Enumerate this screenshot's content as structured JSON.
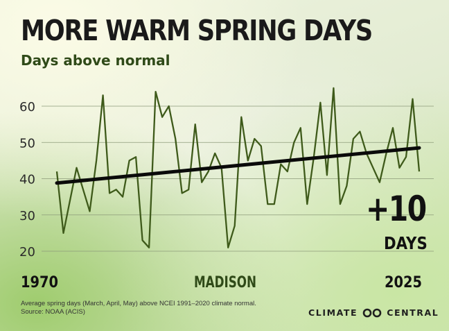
{
  "header": {
    "title": "MORE WARM SPRING DAYS",
    "subtitle": "Days above normal"
  },
  "chart_data": {
    "type": "line",
    "title": "MORE WARM SPRING DAYS",
    "subtitle": "Days above normal",
    "location": "MADISON",
    "x_start_label": "1970",
    "x_end_label": "2025",
    "x": [
      1970,
      1971,
      1972,
      1973,
      1974,
      1975,
      1976,
      1977,
      1978,
      1979,
      1980,
      1981,
      1982,
      1983,
      1984,
      1985,
      1986,
      1987,
      1988,
      1989,
      1990,
      1991,
      1992,
      1993,
      1994,
      1995,
      1996,
      1997,
      1998,
      1999,
      2000,
      2001,
      2002,
      2003,
      2004,
      2005,
      2006,
      2007,
      2008,
      2009,
      2010,
      2011,
      2012,
      2013,
      2014,
      2015,
      2016,
      2017,
      2018,
      2019,
      2020,
      2021,
      2022,
      2023,
      2024,
      2025
    ],
    "series": [
      {
        "values": [
          42,
          25,
          34,
          43,
          37,
          31,
          45,
          63,
          36,
          37,
          35,
          45,
          46,
          23,
          21,
          64,
          57,
          60,
          51,
          36,
          37,
          55,
          39,
          42,
          47,
          43,
          21,
          27,
          57,
          45,
          51,
          49,
          33,
          33,
          44,
          42,
          50,
          54,
          33,
          46,
          61,
          41,
          65,
          33,
          38,
          51,
          53,
          47,
          43,
          39,
          47,
          54,
          43,
          46,
          62,
          42
        ]
      },
      {
        "type": "trend",
        "values_at_ends": [
          38.8,
          48.5
        ]
      }
    ],
    "yticks": [
      20,
      30,
      40,
      50,
      60
    ],
    "ylim": [
      17,
      68
    ],
    "xlim": [
      1970,
      2025
    ],
    "grid": true,
    "line_color": "#3e5a1a",
    "trend_color": "#0a0a0a",
    "annotation": {
      "value": "+10",
      "unit": "DAYS"
    }
  },
  "footer": {
    "note": "Average spring days (March, April, May) above NCEI 1991–2020 climate normal.",
    "source": "Source: NOAA (ACIS)",
    "brand_left": "CLIMATE",
    "brand_right": "CENTRAL",
    "brand_icon": "infinity-logo-icon"
  }
}
